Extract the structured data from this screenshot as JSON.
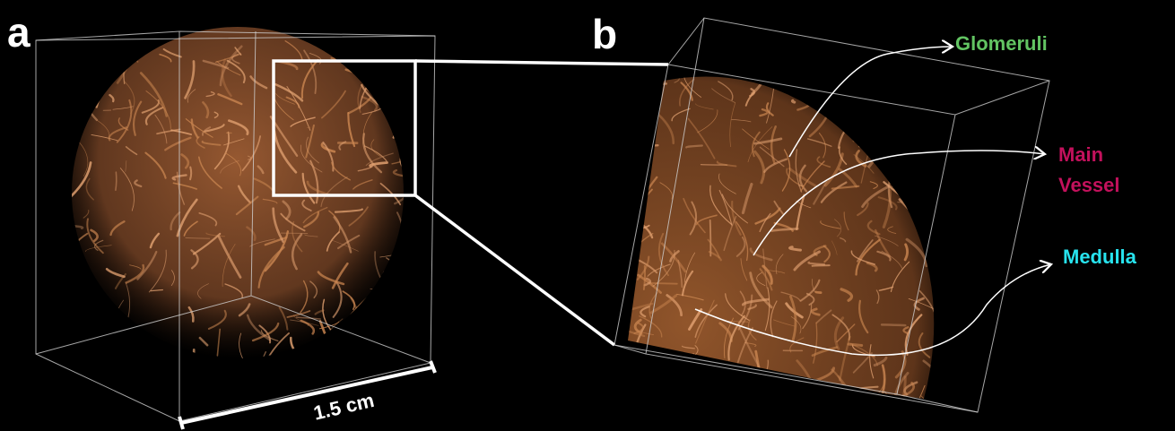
{
  "panels": [
    {
      "label": "a",
      "scale_bar": "1.5 cm"
    },
    {
      "label": "b",
      "annotations": [
        {
          "lines": [
            "Glomeruli"
          ],
          "color": "#62c462"
        },
        {
          "lines": [
            "Main",
            "Vessel"
          ],
          "color": "#c3115c"
        },
        {
          "lines": [
            "Medulla"
          ],
          "color": "#27e3ee"
        }
      ]
    }
  ]
}
